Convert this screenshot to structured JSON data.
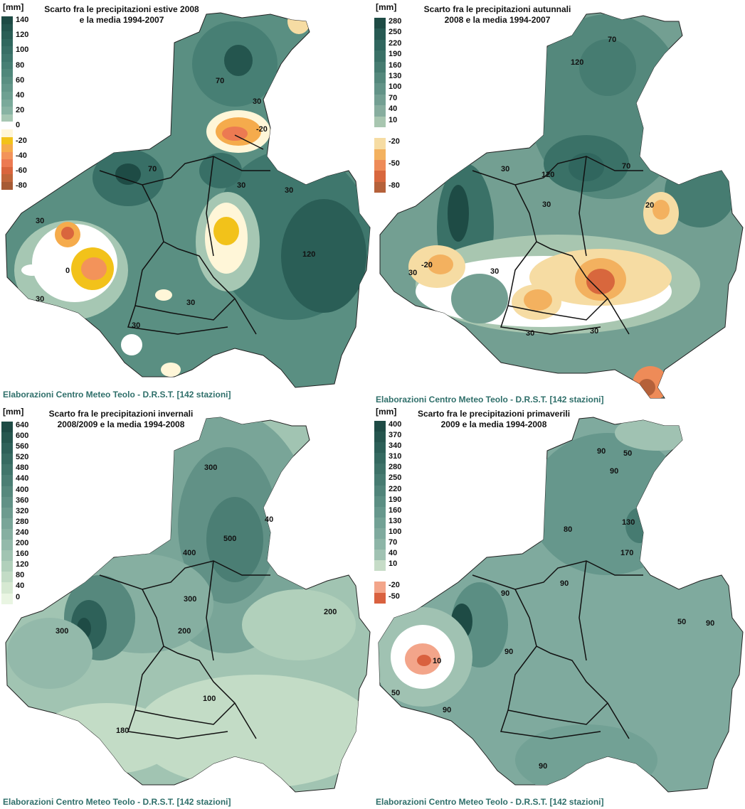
{
  "panels": [
    {
      "id": "summer",
      "unit": "[mm]",
      "title_line1": "Scarto fra le precipitazioni estive 2008",
      "title_line2": "e la media 1994-2007",
      "credit": "Elaborazioni Centro Meteo Teolo - D.R.S.T. [142 stazioni]",
      "legend": [
        {
          "label": "140",
          "color": "#1e4b45"
        },
        {
          "label": "",
          "color": "#24554e"
        },
        {
          "label": "120",
          "color": "#2a5e56"
        },
        {
          "label": "",
          "color": "#30675e"
        },
        {
          "label": "100",
          "color": "#386f66"
        },
        {
          "label": "",
          "color": "#3f776d"
        },
        {
          "label": "80",
          "color": "#477f74"
        },
        {
          "label": "",
          "color": "#50877b"
        },
        {
          "label": "60",
          "color": "#5a8f82"
        },
        {
          "label": "",
          "color": "#64978a"
        },
        {
          "label": "40",
          "color": "#6ea092"
        },
        {
          "label": "",
          "color": "#7aa99a"
        },
        {
          "label": "20",
          "color": "#88b3a3"
        },
        {
          "label": "",
          "color": "#a6c7b3"
        },
        {
          "label": "0",
          "color": "#ffffff"
        },
        {
          "label": "",
          "color": "#fff6d8"
        },
        {
          "label": "-20",
          "color": "#f2c21a"
        },
        {
          "label": "",
          "color": "#f5ab4c"
        },
        {
          "label": "-40",
          "color": "#f3935a"
        },
        {
          "label": "",
          "color": "#ec7a52"
        },
        {
          "label": "-60",
          "color": "#d9653d"
        },
        {
          "label": "",
          "color": "#c0663a"
        },
        {
          "label": "-80",
          "color": "#a65a34"
        }
      ],
      "contour_labels": [
        "70",
        "30",
        "30",
        "30",
        "120",
        "30",
        "70",
        "30",
        "30",
        "0",
        "30",
        "-20"
      ]
    },
    {
      "id": "autumn",
      "unit": "[mm]",
      "title_line1": "Scarto fra le precipitazioni autunnali",
      "title_line2": "2008 e la media 1994-2007",
      "credit": "Elaborazioni Centro Meteo Teolo - D.R.S.T. [142 stazioni]",
      "legend": [
        {
          "label": "280",
          "color": "#1e4b45"
        },
        {
          "label": "250",
          "color": "#275a53"
        },
        {
          "label": "220",
          "color": "#30665e"
        },
        {
          "label": "190",
          "color": "#3a7167"
        },
        {
          "label": "160",
          "color": "#467c71"
        },
        {
          "label": "130",
          "color": "#54887c"
        },
        {
          "label": "100",
          "color": "#629387"
        },
        {
          "label": "70",
          "color": "#739f92"
        },
        {
          "label": "40",
          "color": "#87ad9e"
        },
        {
          "label": "10",
          "color": "#a8c6b0"
        },
        {
          "label": "",
          "color": "#ffffff"
        },
        {
          "label": "-20",
          "color": "#f6dca3"
        },
        {
          "label": "",
          "color": "#f3b15f"
        },
        {
          "label": "-50",
          "color": "#ee8b58"
        },
        {
          "label": "",
          "color": "#d8673d"
        },
        {
          "label": "-80",
          "color": "#b5613a"
        }
      ],
      "contour_labels": [
        "70",
        "120",
        "120",
        "70",
        "30",
        "20",
        "-20",
        "30",
        "30",
        "30",
        "30",
        "30"
      ]
    },
    {
      "id": "winter",
      "unit": "[mm]",
      "title_line1": "Scarto fra le precipitazioni invernali",
      "title_line2": "2008/2009 e la media 1994-2008",
      "credit": "Elaborazioni Centro Meteo Teolo - D.R.S.T. [142 stazioni]",
      "legend": [
        {
          "label": "640",
          "color": "#1e4b45"
        },
        {
          "label": "600",
          "color": "#26574f"
        },
        {
          "label": "560",
          "color": "#2e6159"
        },
        {
          "label": "520",
          "color": "#376b62"
        },
        {
          "label": "480",
          "color": "#41756b"
        },
        {
          "label": "440",
          "color": "#4b7e74"
        },
        {
          "label": "400",
          "color": "#56887d"
        },
        {
          "label": "360",
          "color": "#619186"
        },
        {
          "label": "320",
          "color": "#6d9b8f"
        },
        {
          "label": "280",
          "color": "#79a598"
        },
        {
          "label": "240",
          "color": "#86afa1"
        },
        {
          "label": "200",
          "color": "#93b9aa"
        },
        {
          "label": "160",
          "color": "#a1c4b2"
        },
        {
          "label": "120",
          "color": "#b1d0bb"
        },
        {
          "label": "80",
          "color": "#c3dcc6"
        },
        {
          "label": "40",
          "color": "#d6e9d2"
        },
        {
          "label": "0",
          "color": "#e9f5e2"
        }
      ],
      "contour_labels": [
        "300",
        "400",
        "500",
        "40",
        "300",
        "300",
        "200",
        "200",
        "100",
        "180"
      ]
    },
    {
      "id": "spring",
      "unit": "[mm]",
      "title_line1": "Scarto fra le precipitazioni primaverili",
      "title_line2": "2009 e la media 1994-2008",
      "credit": "Elaborazioni Centro Meteo Teolo - D.R.S.T. [142 stazioni]",
      "legend": [
        {
          "label": "400",
          "color": "#1e4b45"
        },
        {
          "label": "370",
          "color": "#25554e"
        },
        {
          "label": "340",
          "color": "#2c5f57"
        },
        {
          "label": "310",
          "color": "#346960"
        },
        {
          "label": "280",
          "color": "#3d7268"
        },
        {
          "label": "250",
          "color": "#467b71"
        },
        {
          "label": "220",
          "color": "#50847a"
        },
        {
          "label": "190",
          "color": "#5b8e83"
        },
        {
          "label": "160",
          "color": "#66978c"
        },
        {
          "label": "130",
          "color": "#72a195"
        },
        {
          "label": "100",
          "color": "#7faa9e"
        },
        {
          "label": "70",
          "color": "#8db5a7"
        },
        {
          "label": "40",
          "color": "#a0c2b2"
        },
        {
          "label": "10",
          "color": "#c6dcc7"
        },
        {
          "label": "",
          "color": "#ffffff"
        },
        {
          "label": "-20",
          "color": "#f3a58a"
        },
        {
          "label": "-50",
          "color": "#d9613f"
        }
      ],
      "contour_labels": [
        "90",
        "50",
        "90",
        "80",
        "130",
        "170",
        "90",
        "90",
        "50",
        "90",
        "90",
        "50",
        "90",
        "90",
        "10"
      ]
    }
  ]
}
